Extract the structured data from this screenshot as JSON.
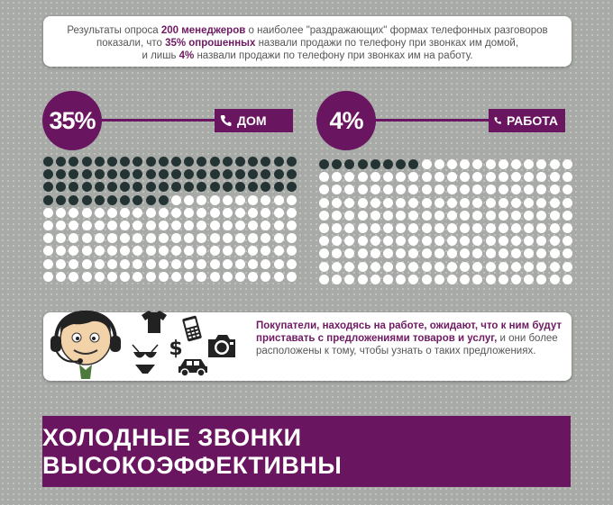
{
  "intro": {
    "t1": "Результаты опроса ",
    "h1": "200 менеджеров",
    "t2": " о наиболее \"раздражающих\" формах телефонных разговоров",
    "t3": "показали, что ",
    "h2": "35% опрошенных",
    "t4": " назвали продажи по телефону при звонках им домой,",
    "t5": "и лишь ",
    "h3": "4%",
    "t6": " назвали продажи по телефону при звонках им на работу."
  },
  "home": {
    "percent": "35%",
    "label": "ДОМ",
    "filled_fraction": 0.35
  },
  "work": {
    "percent": "4%",
    "label": "РАБОТА",
    "filled_fraction": 0.04
  },
  "info": {
    "bold": "Покупатели, находясь на работе, ожидают, что к ним будут приставать с предложениями товаров и услуг,",
    "normal": "и они более расположены к тому, чтобы узнать о таких предложениях."
  },
  "banner": {
    "text": "ХОЛОДНЫЕ ЗВОНКИ ВЫСОКОЭФФЕКТИВНЫ"
  },
  "icons": [
    "operator-icon",
    "tshirt-icon",
    "phone-icon",
    "camera-icon",
    "dollar-icon",
    "bikini-icon",
    "car-icon"
  ],
  "colors": {
    "accent": "#6a1560",
    "dot_filled": "#243434",
    "dot_empty": "#ffffff"
  }
}
